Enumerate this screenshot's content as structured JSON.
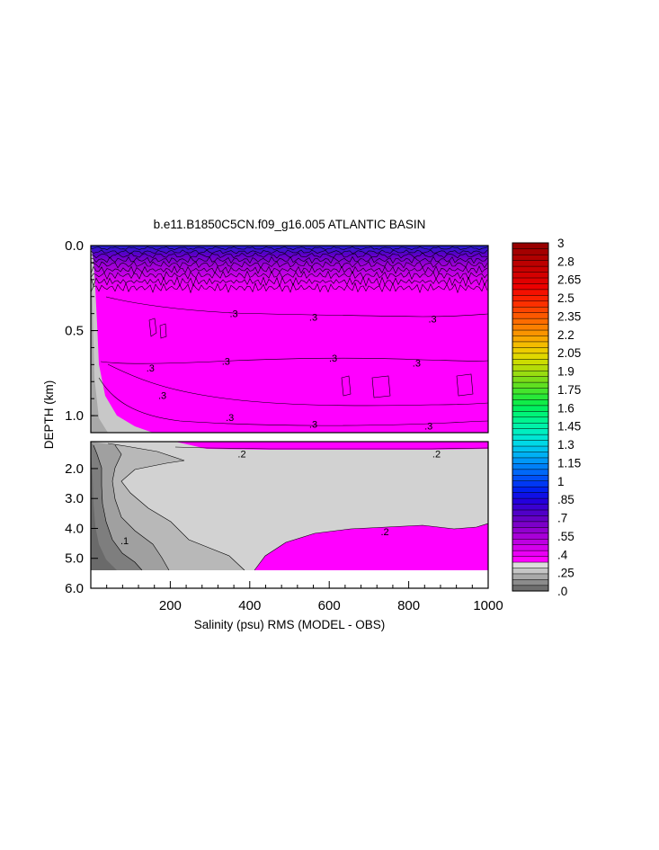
{
  "chart_data": {
    "type": "heatmap",
    "title": "b.e11.B1850C5CN.f09_g16.005 ATLANTIC BASIN",
    "xlabel": "Salinity (psu) RMS (MODEL - OBS)",
    "ylabel": "DEPTH (km)",
    "xlim": [
      0,
      1000
    ],
    "x_ticks": [
      "200",
      "400",
      "600",
      "800",
      "1000"
    ],
    "upper_panel": {
      "ylim": [
        0.0,
        1.1
      ],
      "y_ticks": [
        "0.0",
        "0.5",
        "1.0"
      ]
    },
    "lower_panel": {
      "ylim": [
        1.1,
        6.0
      ],
      "y_ticks": [
        "2.0",
        "3.0",
        "4.0",
        "5.0",
        "6.0"
      ]
    },
    "contour_labels": {
      "upper": [
        {
          "text": ".3",
          "x": 360,
          "depth": 0.4
        },
        {
          "text": ".3",
          "x": 560,
          "depth": 0.42
        },
        {
          "text": ".3",
          "x": 860,
          "depth": 0.43
        },
        {
          "text": ".3",
          "x": 150,
          "depth": 0.72
        },
        {
          "text": ".3",
          "x": 340,
          "depth": 0.68
        },
        {
          "text": ".3",
          "x": 610,
          "depth": 0.66
        },
        {
          "text": ".3",
          "x": 820,
          "depth": 0.69
        },
        {
          "text": ".3",
          "x": 180,
          "depth": 0.88
        },
        {
          "text": ".3",
          "x": 350,
          "depth": 1.01
        },
        {
          "text": ".3",
          "x": 560,
          "depth": 1.05
        },
        {
          "text": ".3",
          "x": 850,
          "depth": 1.06
        }
      ],
      "lower": [
        {
          "text": ".2",
          "x": 380,
          "depth": 1.5
        },
        {
          "text": ".2",
          "x": 870,
          "depth": 1.5
        },
        {
          "text": ".2",
          "x": 740,
          "depth": 4.1
        },
        {
          "text": ".1",
          "x": 85,
          "depth": 4.4
        }
      ]
    },
    "colorbar": {
      "labels": [
        "3",
        "2.8",
        "2.65",
        "2.5",
        "2.35",
        "2.2",
        "2.05",
        "1.9",
        "1.75",
        "1.6",
        "1.45",
        "1.3",
        "1.15",
        "1",
        ".85",
        ".7",
        ".55",
        ".4",
        ".25",
        ".0"
      ],
      "levels_low_to_high": [
        0,
        0.05,
        0.1,
        0.15,
        0.2,
        0.25,
        0.3,
        0.35,
        0.4,
        0.45,
        0.5,
        0.55,
        0.6,
        0.65,
        0.7,
        0.75,
        0.8,
        0.85,
        0.9,
        0.95,
        1.0,
        1.05,
        1.1,
        1.15,
        1.2,
        1.25,
        1.3,
        1.35,
        1.4,
        1.45,
        1.5,
        1.55,
        1.6,
        1.65,
        1.7,
        1.75,
        1.8,
        1.85,
        1.9,
        1.95,
        2.0,
        2.05,
        2.1,
        2.15,
        2.2,
        2.25,
        2.3,
        2.35,
        2.4,
        2.45,
        2.5,
        2.55,
        2.6,
        2.65,
        2.7,
        2.75,
        2.8,
        2.85,
        2.9,
        2.95,
        3.0
      ],
      "colors_low_to_high": [
        "#6e6e6e",
        "#8c8c8c",
        "#a9a9a9",
        "#c6c6c6",
        "#dcdcdc",
        "#ff00ff",
        "#ea00f5",
        "#d400ec",
        "#be00e2",
        "#a800d8",
        "#9200cf",
        "#7c00c8",
        "#6600c4",
        "#5000c8",
        "#3a00d0",
        "#2400dc",
        "#1010e6",
        "#0020f0",
        "#0038f4",
        "#0050f6",
        "#0068f8",
        "#0080f8",
        "#0098f8",
        "#00b0f4",
        "#00c4ee",
        "#00d8e6",
        "#00e6d4",
        "#00eec0",
        "#00f2a8",
        "#00f490",
        "#00f478",
        "#00f060",
        "#10ec48",
        "#28e838",
        "#44e42c",
        "#60e020",
        "#7cdc18",
        "#98dc10",
        "#b4dc08",
        "#ccdc00",
        "#e0d800",
        "#eccc00",
        "#f4bc00",
        "#f8a800",
        "#fa9400",
        "#fb8000",
        "#fc6c00",
        "#fc5800",
        "#fc4400",
        "#fc3000",
        "#fa2000",
        "#f41000",
        "#ec0000",
        "#e00000",
        "#d40000",
        "#c80000",
        "#bc0000",
        "#b00000",
        "#a40000",
        "#980000"
      ]
    }
  }
}
